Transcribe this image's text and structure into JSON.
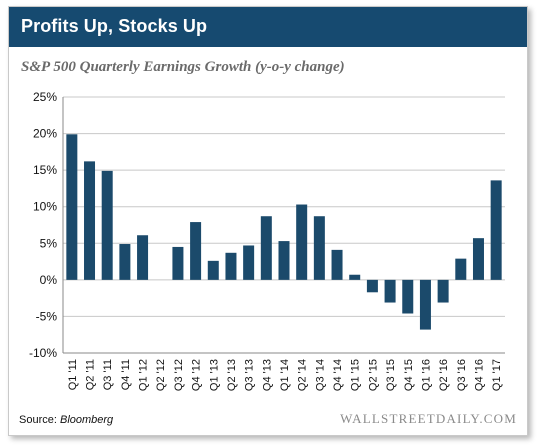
{
  "header": {
    "title": "Profits Up, Stocks Up"
  },
  "footer": {
    "source_label": "Source:",
    "source_name": "Bloomberg",
    "brand": "WALLSTREETDAILY.COM"
  },
  "colors": {
    "banner": "#164a70",
    "bar": "#1b4a6b",
    "grid": "#c8c8c8"
  },
  "chart_data": {
    "type": "bar",
    "title": "S&P 500 Quarterly Earnings Growth (y-o-y change)",
    "xlabel": "",
    "ylabel": "",
    "ylim": [
      -10,
      25
    ],
    "yticks": [
      25,
      20,
      15,
      10,
      5,
      0,
      -5,
      -10
    ],
    "ytick_labels": [
      "25%",
      "20%",
      "15%",
      "10%",
      "5%",
      "0%",
      "-5%",
      "-10%"
    ],
    "grid": "horizontal",
    "legend": "none",
    "categories": [
      "Q1 '11",
      "Q2 '11",
      "Q3 '11",
      "Q4 '11",
      "Q1 '12",
      "Q2 '12",
      "Q3 '12",
      "Q4 '12",
      "Q1 '13",
      "Q2 '13",
      "Q3 '13",
      "Q4 '13",
      "Q1 '14",
      "Q2 '14",
      "Q3 '14",
      "Q4 '14",
      "Q1 '15",
      "Q2 '15",
      "Q3 '15",
      "Q4 '15",
      "Q1 '16",
      "Q2 '16",
      "Q3 '16",
      "Q4 '16",
      "Q1 '17"
    ],
    "values": [
      19.9,
      16.2,
      14.9,
      4.9,
      6.1,
      0,
      4.5,
      7.9,
      2.6,
      3.7,
      4.7,
      8.7,
      5.3,
      10.3,
      8.7,
      4.1,
      0.7,
      -1.7,
      -3.1,
      -4.6,
      -6.8,
      -3.1,
      2.9,
      5.7,
      13.6
    ]
  }
}
